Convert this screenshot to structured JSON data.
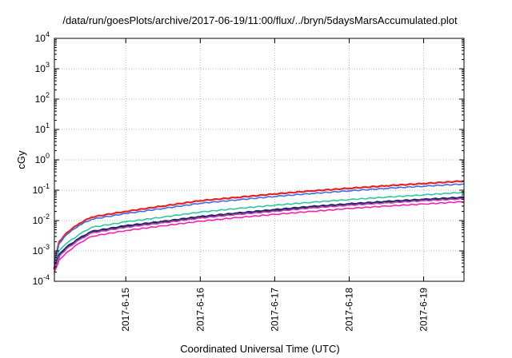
{
  "chart_data": {
    "type": "line",
    "title": "/data/run/goesPlots/archive/2017-06-19/11:00/flux/../bryn/5daysMarsAccumulated.plot",
    "xlabel": "Coordinated Universal Time (UTC)",
    "ylabel": "cGy",
    "x_scale": "time",
    "y_scale": "log",
    "xlim": [
      "2017-06-14T01:00",
      "2017-06-19T13:00"
    ],
    "ylim": [
      0.0001,
      10000
    ],
    "x_ticks": [
      "2017-6-15",
      "2017-6-16",
      "2017-6-17",
      "2017-6-18",
      "2017-6-19"
    ],
    "y_ticks": [
      {
        "base": "10",
        "exp": "-4"
      },
      {
        "base": "10",
        "exp": "-3"
      },
      {
        "base": "10",
        "exp": "-2"
      },
      {
        "base": "10",
        "exp": "-1"
      },
      {
        "base": "10",
        "exp": "0"
      },
      {
        "base": "10",
        "exp": "1"
      },
      {
        "base": "10",
        "exp": "2"
      },
      {
        "base": "10",
        "exp": "3"
      },
      {
        "base": "10",
        "exp": "4"
      }
    ],
    "grid": true,
    "legend": "none",
    "x": [
      "2017-06-14T01:00",
      "2017-06-14T02:30",
      "2017-06-14T05:00",
      "2017-06-14T09:00",
      "2017-06-14T13:00",
      "2017-06-15T00:00",
      "2017-06-15T12:00",
      "2017-06-16T00:00",
      "2017-06-16T12:00",
      "2017-06-17T00:00",
      "2017-06-17T12:00",
      "2017-06-18T00:00",
      "2017-06-18T12:00",
      "2017-06-19T00:00",
      "2017-06-19T13:00"
    ],
    "series": [
      {
        "color": "#e8222a",
        "width": 2.2,
        "values": [
          0.0004,
          0.002,
          0.004,
          0.008,
          0.013,
          0.02,
          0.03,
          0.045,
          0.058,
          0.075,
          0.095,
          0.115,
          0.14,
          0.165,
          0.2
        ]
      },
      {
        "color": "#3a6fe8",
        "width": 1.6,
        "values": [
          0.00035,
          0.0017,
          0.0035,
          0.007,
          0.011,
          0.017,
          0.025,
          0.037,
          0.048,
          0.062,
          0.078,
          0.095,
          0.115,
          0.135,
          0.16
        ]
      },
      {
        "color": "#2bc9a0",
        "width": 1.6,
        "values": [
          0.0003,
          0.001,
          0.0018,
          0.0035,
          0.006,
          0.009,
          0.013,
          0.019,
          0.025,
          0.032,
          0.04,
          0.049,
          0.059,
          0.07,
          0.085
        ]
      },
      {
        "color": "#2a2370",
        "width": 3.2,
        "values": [
          0.00025,
          0.0007,
          0.0013,
          0.0025,
          0.0042,
          0.0065,
          0.009,
          0.013,
          0.017,
          0.022,
          0.028,
          0.034,
          0.041,
          0.048,
          0.056
        ]
      },
      {
        "color": "#b84aa8",
        "width": 1.6,
        "values": [
          0.00025,
          0.00065,
          0.0012,
          0.0023,
          0.0039,
          0.006,
          0.0084,
          0.012,
          0.016,
          0.02,
          0.026,
          0.032,
          0.038,
          0.045,
          0.052
        ]
      },
      {
        "color": "#ff1fb4",
        "width": 1.6,
        "values": [
          0.0002,
          0.0005,
          0.0009,
          0.0018,
          0.003,
          0.0047,
          0.0067,
          0.0095,
          0.0125,
          0.016,
          0.02,
          0.025,
          0.03,
          0.035,
          0.042
        ]
      }
    ]
  }
}
